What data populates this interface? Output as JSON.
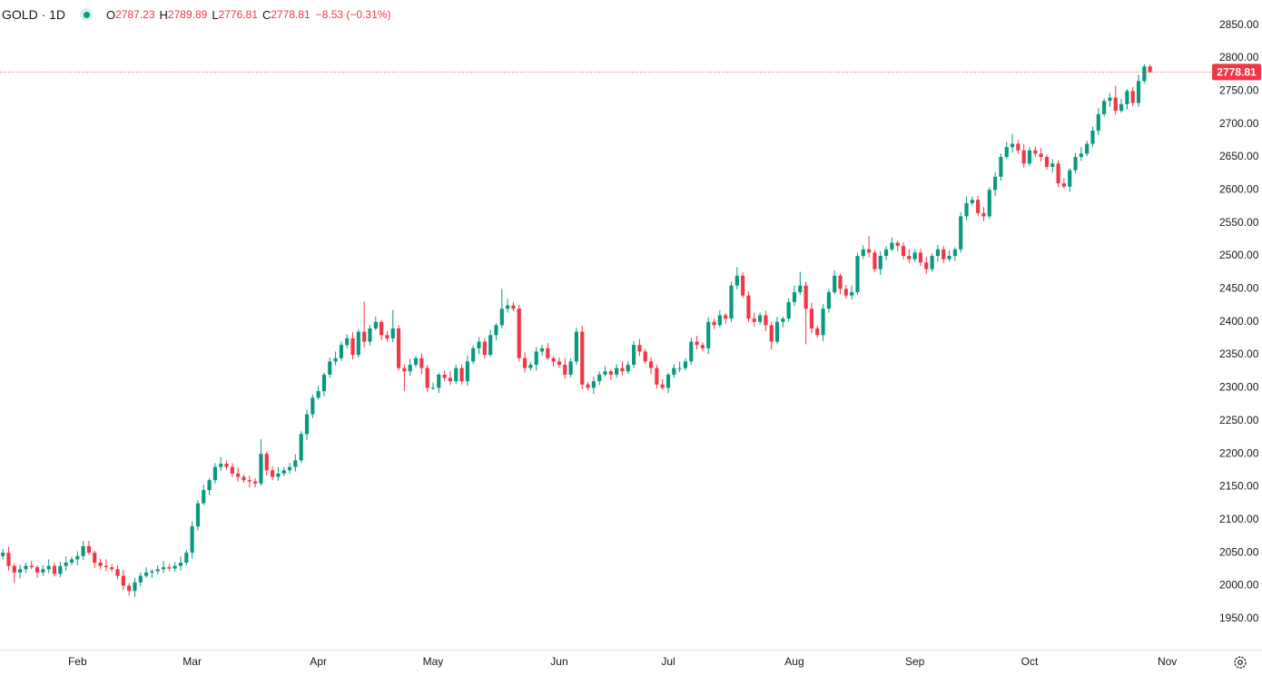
{
  "chart_data": {
    "type": "candlestick",
    "title": "GOLD · 1D",
    "ohlc_labels": [
      "O",
      "H",
      "L",
      "C"
    ],
    "change": "−8.53 (−0.31%)",
    "up_color": "#089981",
    "down_color": "#f23645",
    "grid": false,
    "xlim": [
      -0.5,
      210.5
    ],
    "xticks": [
      {
        "value": 13,
        "label": "Feb"
      },
      {
        "value": 33,
        "label": "Mar"
      },
      {
        "value": 55,
        "label": "Apr"
      },
      {
        "value": 75,
        "label": "May"
      },
      {
        "value": 97,
        "label": "Jun"
      },
      {
        "value": 116,
        "label": "Jul"
      },
      {
        "value": 138,
        "label": "Aug"
      },
      {
        "value": 159,
        "label": "Sep"
      },
      {
        "value": 179,
        "label": "Oct"
      },
      {
        "value": 203,
        "label": "Nov"
      }
    ],
    "ylim": [
      1903,
      2888
    ],
    "yticks": [
      {
        "value": 1950,
        "label": "1950.00"
      },
      {
        "value": 2000,
        "label": "2000.00"
      },
      {
        "value": 2050,
        "label": "2050.00"
      },
      {
        "value": 2100,
        "label": "2100.00"
      },
      {
        "value": 2150,
        "label": "2150.00"
      },
      {
        "value": 2200,
        "label": "2200.00"
      },
      {
        "value": 2250,
        "label": "2250.00"
      },
      {
        "value": 2300,
        "label": "2300.00"
      },
      {
        "value": 2350,
        "label": "2350.00"
      },
      {
        "value": 2400,
        "label": "2400.00"
      },
      {
        "value": 2450,
        "label": "2450.00"
      },
      {
        "value": 2500,
        "label": "2500.00"
      },
      {
        "value": 2550,
        "label": "2550.00"
      },
      {
        "value": 2600,
        "label": "2600.00"
      },
      {
        "value": 2650,
        "label": "2650.00"
      },
      {
        "value": 2700,
        "label": "2700.00"
      },
      {
        "value": 2750,
        "label": "2750.00"
      },
      {
        "value": 2800,
        "label": "2800.00"
      },
      {
        "value": 2850,
        "label": "2850.00"
      }
    ],
    "open": [
      2045,
      2050,
      2030,
      2020,
      2025,
      2030,
      2028,
      2020,
      2025,
      2030,
      2018,
      2030,
      2035,
      2040,
      2045,
      2060,
      2050,
      2035,
      2030,
      2028,
      2025,
      2015,
      2000,
      1992,
      2005,
      2015,
      2020,
      2022,
      2025,
      2028,
      2026,
      2030,
      2035,
      2050,
      2090,
      2125,
      2145,
      2160,
      2180,
      2185,
      2180,
      2170,
      2165,
      2160,
      2158,
      2155,
      2200,
      2175,
      2165,
      2170,
      2175,
      2180,
      2190,
      2230,
      2260,
      2285,
      2295,
      2320,
      2340,
      2345,
      2365,
      2375,
      2350,
      2385,
      2370,
      2390,
      2400,
      2380,
      2375,
      2390,
      2330,
      2325,
      2335,
      2345,
      2330,
      2300,
      2300,
      2320,
      2315,
      2310,
      2330,
      2310,
      2340,
      2360,
      2370,
      2350,
      2380,
      2395,
      2420,
      2425,
      2420,
      2345,
      2330,
      2335,
      2355,
      2360,
      2345,
      2340,
      2335,
      2320,
      2340,
      2385,
      2305,
      2300,
      2310,
      2320,
      2325,
      2320,
      2330,
      2325,
      2335,
      2365,
      2355,
      2340,
      2330,
      2305,
      2300,
      2320,
      2330,
      2330,
      2340,
      2370,
      2365,
      2360,
      2400,
      2395,
      2410,
      2405,
      2455,
      2470,
      2440,
      2405,
      2400,
      2410,
      2395,
      2370,
      2400,
      2405,
      2430,
      2445,
      2455,
      2420,
      2390,
      2380,
      2420,
      2445,
      2470,
      2450,
      2440,
      2445,
      2500,
      2510,
      2505,
      2480,
      2500,
      2510,
      2520,
      2515,
      2500,
      2495,
      2505,
      2490,
      2480,
      2500,
      2510,
      2495,
      2500,
      2510,
      2560,
      2580,
      2585,
      2565,
      2560,
      2600,
      2620,
      2650,
      2665,
      2670,
      2660,
      2640,
      2660,
      2655,
      2650,
      2635,
      2640,
      2610,
      2605,
      2630,
      2650,
      2655,
      2670,
      2690,
      2715,
      2735,
      2740,
      2720,
      2730,
      2750,
      2732,
      2765,
      2787.23
    ],
    "high": [
      2056,
      2059,
      2034,
      2032,
      2035,
      2038,
      2031,
      2031,
      2040,
      2035,
      2036,
      2044,
      2044,
      2052,
      2068,
      2068,
      2053,
      2041,
      2040,
      2033,
      2031,
      2024,
      2004,
      2012,
      2020,
      2028,
      2025,
      2031,
      2038,
      2033,
      2036,
      2044,
      2054,
      2097,
      2130,
      2153,
      2163,
      2186,
      2195,
      2190,
      2186,
      2179,
      2169,
      2167,
      2163,
      2222,
      2203,
      2181,
      2180,
      2180,
      2186,
      2199,
      2234,
      2267,
      2290,
      2303,
      2323,
      2346,
      2355,
      2370,
      2381,
      2384,
      2389,
      2431,
      2395,
      2408,
      2403,
      2386,
      2418,
      2395,
      2336,
      2344,
      2349,
      2352,
      2335,
      2308,
      2323,
      2326,
      2325,
      2335,
      2336,
      2349,
      2364,
      2377,
      2375,
      2388,
      2398,
      2450,
      2435,
      2430,
      2426,
      2354,
      2339,
      2362,
      2365,
      2368,
      2348,
      2346,
      2345,
      2345,
      2391,
      2394,
      2309,
      2317,
      2325,
      2333,
      2328,
      2336,
      2340,
      2340,
      2371,
      2374,
      2359,
      2347,
      2335,
      2313,
      2323,
      2336,
      2340,
      2345,
      2376,
      2379,
      2369,
      2407,
      2405,
      2418,
      2413,
      2461,
      2483,
      2475,
      2446,
      2414,
      2414,
      2417,
      2400,
      2408,
      2408,
      2436,
      2455,
      2476,
      2461,
      2429,
      2394,
      2427,
      2450,
      2478,
      2473,
      2456,
      2455,
      2505,
      2516,
      2530,
      2509,
      2507,
      2515,
      2528,
      2523,
      2521,
      2510,
      2510,
      2511,
      2499,
      2504,
      2517,
      2515,
      2508,
      2513,
      2566,
      2590,
      2590,
      2591,
      2574,
      2604,
      2627,
      2655,
      2673,
      2685,
      2676,
      2670,
      2665,
      2666,
      2664,
      2654,
      2647,
      2645,
      2618,
      2633,
      2656,
      2665,
      2675,
      2696,
      2724,
      2739,
      2747,
      2758,
      2738,
      2753,
      2756,
      2775,
      2791,
      2789.89
    ],
    "low": [
      2040,
      2023,
      2004,
      2011,
      2019,
      2025,
      2012,
      2015,
      2019,
      2014,
      2013,
      2023,
      2031,
      2031,
      2039,
      2047,
      2027,
      2025,
      2022,
      2021,
      2010,
      1993,
      1985,
      1983,
      1999,
      2012,
      2012,
      2017,
      2019,
      2022,
      2021,
      2023,
      2031,
      2041,
      2084,
      2122,
      2137,
      2155,
      2174,
      2176,
      2165,
      2158,
      2156,
      2149,
      2149,
      2152,
      2167,
      2160,
      2159,
      2166,
      2170,
      2173,
      2186,
      2221,
      2254,
      2282,
      2287,
      2315,
      2334,
      2341,
      2360,
      2343,
      2346,
      2361,
      2364,
      2387,
      2372,
      2370,
      2369,
      2326,
      2295,
      2318,
      2331,
      2321,
      2294,
      2297,
      2292,
      2310,
      2304,
      2306,
      2305,
      2303,
      2336,
      2351,
      2344,
      2347,
      2372,
      2390,
      2414,
      2416,
      2340,
      2323,
      2326,
      2326,
      2349,
      2342,
      2332,
      2330,
      2314,
      2316,
      2335,
      2298,
      2296,
      2291,
      2304,
      2317,
      2312,
      2315,
      2319,
      2321,
      2330,
      2348,
      2336,
      2321,
      2299,
      2297,
      2292,
      2315,
      2324,
      2326,
      2335,
      2358,
      2356,
      2351,
      2389,
      2392,
      2397,
      2400,
      2449,
      2436,
      2400,
      2393,
      2396,
      2386,
      2358,
      2367,
      2392,
      2400,
      2424,
      2441,
      2366,
      2383,
      2376,
      2371,
      2414,
      2442,
      2442,
      2435,
      2434,
      2441,
      2495,
      2498,
      2476,
      2471,
      2494,
      2507,
      2507,
      2495,
      2489,
      2491,
      2485,
      2473,
      2476,
      2491,
      2489,
      2492,
      2492,
      2505,
      2554,
      2576,
      2560,
      2553,
      2556,
      2591,
      2614,
      2647,
      2657,
      2655,
      2634,
      2636,
      2650,
      2643,
      2631,
      2626,
      2604,
      2602,
      2597,
      2625,
      2644,
      2651,
      2665,
      2683,
      2711,
      2726,
      2714,
      2717,
      2722,
      2727,
      2726,
      2761,
      2776.81
    ],
    "close": [
      2050,
      2030,
      2020,
      2025,
      2030,
      2028,
      2020,
      2025,
      2030,
      2018,
      2030,
      2035,
      2040,
      2045,
      2060,
      2050,
      2035,
      2030,
      2028,
      2025,
      2015,
      2000,
      1992,
      2005,
      2015,
      2020,
      2022,
      2025,
      2028,
      2026,
      2030,
      2035,
      2050,
      2090,
      2125,
      2145,
      2160,
      2180,
      2185,
      2180,
      2170,
      2165,
      2160,
      2158,
      2155,
      2200,
      2175,
      2165,
      2170,
      2175,
      2180,
      2190,
      2230,
      2260,
      2285,
      2295,
      2320,
      2340,
      2345,
      2365,
      2375,
      2350,
      2385,
      2370,
      2390,
      2400,
      2380,
      2375,
      2390,
      2330,
      2325,
      2335,
      2345,
      2330,
      2300,
      2300,
      2320,
      2315,
      2310,
      2330,
      2310,
      2340,
      2360,
      2370,
      2350,
      2380,
      2395,
      2420,
      2425,
      2420,
      2345,
      2330,
      2335,
      2355,
      2360,
      2345,
      2340,
      2335,
      2320,
      2340,
      2385,
      2305,
      2300,
      2310,
      2320,
      2325,
      2320,
      2330,
      2325,
      2335,
      2365,
      2355,
      2340,
      2330,
      2305,
      2300,
      2320,
      2330,
      2330,
      2340,
      2370,
      2365,
      2360,
      2400,
      2395,
      2410,
      2405,
      2455,
      2470,
      2440,
      2405,
      2400,
      2410,
      2395,
      2370,
      2400,
      2405,
      2430,
      2445,
      2455,
      2420,
      2390,
      2380,
      2420,
      2445,
      2470,
      2450,
      2440,
      2445,
      2500,
      2510,
      2505,
      2480,
      2500,
      2510,
      2520,
      2515,
      2500,
      2495,
      2505,
      2490,
      2480,
      2500,
      2510,
      2495,
      2500,
      2510,
      2560,
      2580,
      2585,
      2565,
      2560,
      2600,
      2620,
      2650,
      2665,
      2670,
      2660,
      2640,
      2660,
      2655,
      2650,
      2635,
      2640,
      2610,
      2605,
      2630,
      2650,
      2655,
      2670,
      2690,
      2715,
      2735,
      2740,
      2720,
      2730,
      2750,
      2732,
      2765,
      2787.34,
      2778.81
    ]
  }
}
